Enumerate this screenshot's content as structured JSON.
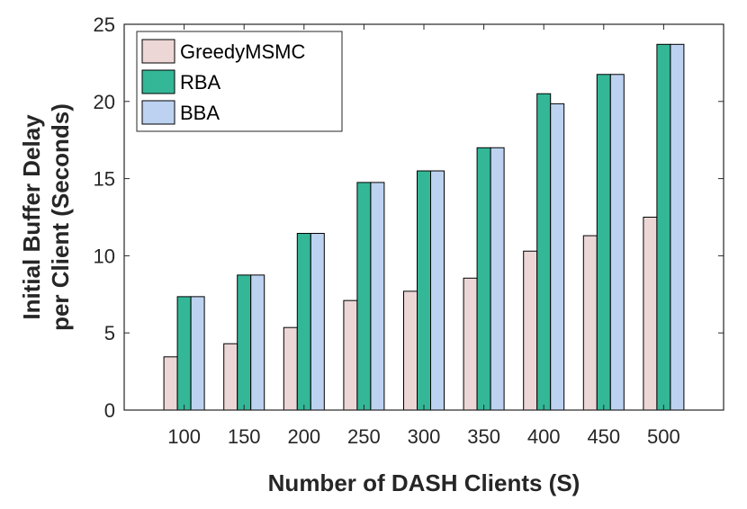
{
  "chart_data": {
    "type": "bar",
    "title": "",
    "xlabel": "Number of DASH Clients (S)",
    "ylabel_lines": [
      "Initial Buffer Delay",
      "per Client (Seconds)"
    ],
    "categories": [
      "100",
      "150",
      "200",
      "250",
      "300",
      "350",
      "400",
      "450",
      "500"
    ],
    "series": [
      {
        "name": "GreedyMSMC",
        "color": "#ecd6d6",
        "values": [
          3.45,
          4.3,
          5.35,
          7.1,
          7.7,
          8.55,
          10.3,
          11.3,
          12.5
        ]
      },
      {
        "name": "RBA",
        "color": "#33b797",
        "values": [
          7.35,
          8.75,
          11.45,
          14.75,
          15.5,
          17.0,
          20.5,
          21.75,
          23.7
        ]
      },
      {
        "name": "BBA",
        "color": "#bcd2f0",
        "values": [
          7.35,
          8.75,
          11.45,
          14.75,
          15.5,
          17.0,
          19.85,
          21.75,
          23.7
        ]
      }
    ],
    "ylim": [
      0,
      25
    ],
    "yticks": [
      0,
      5,
      10,
      15,
      20,
      25
    ],
    "grid": false,
    "legend_position": "top-left"
  }
}
